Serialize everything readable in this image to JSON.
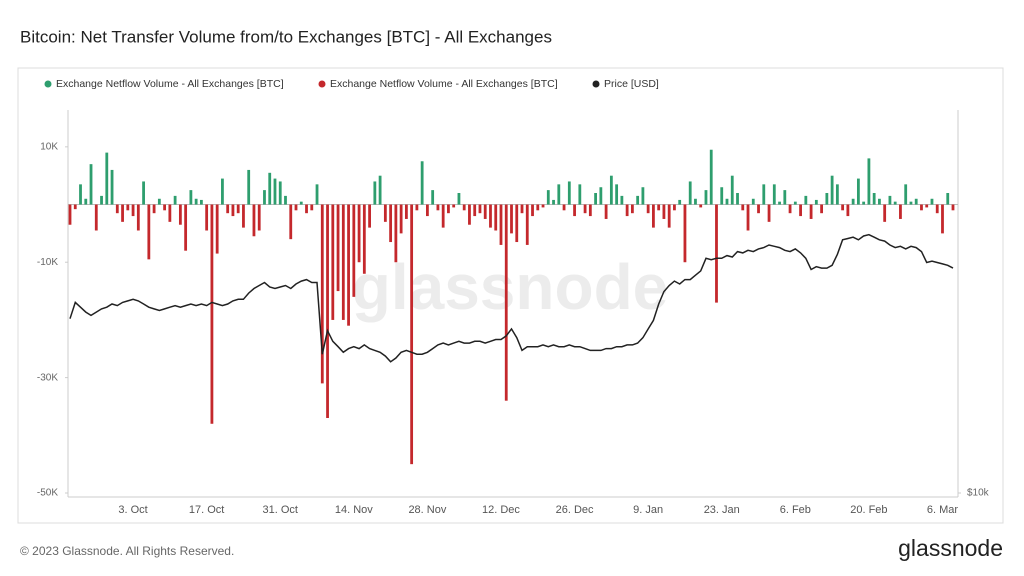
{
  "chart_data": {
    "type": "bar-line",
    "title": "Bitcoin: Net Transfer Volume from/to Exchanges [BTC] - All Exchanges",
    "watermark": "glassnode",
    "footer": "© 2023 Glassnode. All Rights Reserved.",
    "logo": "glassnode",
    "categories": [
      null,
      null,
      null,
      null,
      null,
      null,
      null,
      null,
      null,
      null,
      null,
      null,
      "3. Oct",
      null,
      null,
      null,
      null,
      null,
      null,
      null,
      null,
      null,
      null,
      null,
      null,
      null,
      "17. Oct",
      null,
      null,
      null,
      null,
      null,
      null,
      null,
      null,
      null,
      null,
      null,
      null,
      null,
      "31. Oct",
      null,
      null,
      null,
      null,
      null,
      null,
      null,
      null,
      null,
      null,
      null,
      null,
      null,
      "14. Nov",
      null,
      null,
      null,
      null,
      null,
      null,
      null,
      null,
      null,
      null,
      null,
      null,
      null,
      "28. Nov",
      null,
      null,
      null,
      null,
      null,
      null,
      null,
      null,
      null,
      null,
      null,
      null,
      null,
      "12. Dec",
      null,
      null,
      null,
      null,
      null,
      null,
      null,
      null,
      null,
      null,
      null,
      null,
      null,
      "26. Dec",
      null,
      null,
      null,
      null,
      null,
      null,
      null,
      null,
      null,
      null,
      null,
      null,
      null,
      "9. Jan",
      null,
      null,
      null,
      null,
      null,
      null,
      null,
      null,
      null,
      null,
      null,
      null,
      null,
      "23. Jan",
      null,
      null,
      null,
      null,
      null,
      null,
      null,
      null,
      null,
      null,
      null,
      null,
      null,
      "6. Feb",
      null,
      null,
      null,
      null,
      null,
      null,
      null,
      null,
      null,
      null,
      null,
      null,
      null,
      "20. Feb",
      null,
      null,
      null,
      null,
      null,
      null,
      null,
      null,
      null,
      null,
      null,
      null,
      null,
      "6. Mar",
      null,
      null
    ],
    "series": [
      {
        "name": "Exchange Netflow Volume - All Exchanges [BTC]",
        "color": "#2e9e6e",
        "values": [
          null,
          null,
          3500,
          1000,
          7000,
          null,
          1500,
          9000,
          6000,
          null,
          null,
          null,
          null,
          null,
          4000,
          null,
          null,
          1000,
          null,
          null,
          1500,
          null,
          null,
          2500,
          1000,
          800,
          null,
          null,
          null,
          4500,
          null,
          null,
          null,
          null,
          6000,
          null,
          null,
          2500,
          5500,
          4500,
          4000,
          1500,
          null,
          null,
          500,
          null,
          null,
          3500,
          null,
          null,
          null,
          null,
          null,
          null,
          null,
          null,
          null,
          null,
          4000,
          5000,
          null,
          null,
          null,
          null,
          null,
          null,
          null,
          7500,
          null,
          2500,
          null,
          null,
          null,
          null,
          2000,
          null,
          null,
          null,
          null,
          null,
          null,
          null,
          null,
          null,
          null,
          null,
          null,
          null,
          null,
          null,
          null,
          2500,
          800,
          3500,
          null,
          4000,
          null,
          3500,
          null,
          null,
          2000,
          3000,
          null,
          5000,
          3500,
          1500,
          null,
          null,
          1500,
          3000,
          null,
          null,
          null,
          null,
          null,
          null,
          800,
          null,
          4000,
          1000,
          null,
          2500,
          9500,
          null,
          3000,
          1000,
          5000,
          2000,
          null,
          null,
          1000,
          null,
          3500,
          null,
          3500,
          500,
          2500,
          null,
          500,
          null,
          1500,
          null,
          800,
          null,
          2000,
          5000,
          3500,
          null,
          null,
          1000,
          4500,
          500,
          8000,
          2000,
          1000,
          null,
          1500,
          500,
          null,
          3500,
          500,
          1000,
          null,
          null,
          1000,
          null,
          null,
          2000,
          null
        ]
      },
      {
        "name": "Exchange Netflow Volume - All Exchanges [BTC]",
        "color": "#c4282c",
        "values": [
          -3500,
          -800,
          null,
          null,
          null,
          -4500,
          null,
          null,
          null,
          -1500,
          -3000,
          -1000,
          -2000,
          -4500,
          null,
          -9500,
          -1500,
          null,
          -1000,
          -3000,
          null,
          -3500,
          -8000,
          null,
          null,
          null,
          -4500,
          -38000,
          -8500,
          null,
          -1500,
          -2000,
          -1500,
          -4000,
          null,
          -5500,
          -4500,
          null,
          null,
          null,
          null,
          null,
          -6000,
          -1000,
          null,
          -1500,
          -1000,
          null,
          -31000,
          -37000,
          -20000,
          -15000,
          -20000,
          -21000,
          -16000,
          -10000,
          -12000,
          -4000,
          null,
          null,
          -3000,
          -6500,
          -10000,
          -5000,
          -2500,
          -45000,
          -1000,
          null,
          -2000,
          null,
          -1000,
          -4000,
          -1500,
          -500,
          null,
          -1000,
          -3500,
          -2000,
          -1500,
          -2500,
          -4000,
          -4500,
          -7000,
          -34000,
          -5000,
          -6500,
          -1500,
          -7000,
          -2000,
          -1000,
          -500,
          null,
          null,
          null,
          -1000,
          null,
          -2000,
          null,
          -1500,
          -2000,
          null,
          null,
          -2500,
          null,
          null,
          null,
          -2000,
          -1500,
          null,
          null,
          -1500,
          -4000,
          -1000,
          -2500,
          -4000,
          -1000,
          null,
          -10000,
          null,
          null,
          -500,
          null,
          null,
          -17000,
          null,
          null,
          null,
          null,
          -1000,
          -4500,
          null,
          -1500,
          null,
          -3000,
          null,
          null,
          null,
          -1500,
          null,
          -2000,
          null,
          -2500,
          null,
          -1500,
          null,
          null,
          null,
          -1000,
          -2000,
          null,
          null,
          null,
          null,
          null,
          null,
          -3000,
          null,
          null,
          -2500,
          null,
          null,
          null,
          -1000,
          -500,
          null,
          -1500,
          -5000,
          null,
          -1000
        ]
      },
      {
        "name": "Price [USD]",
        "color": "#222222",
        "axis": "y2",
        "values": [
          17900,
          18900,
          18600,
          18300,
          18100,
          18300,
          18500,
          18600,
          18800,
          18700,
          18900,
          19000,
          19100,
          19000,
          18800,
          18600,
          18500,
          18400,
          18500,
          18600,
          18700,
          18600,
          18700,
          18800,
          18700,
          18800,
          18700,
          18900,
          18800,
          18700,
          18800,
          19000,
          19100,
          19100,
          19500,
          19800,
          20000,
          20200,
          19900,
          19800,
          19900,
          20000,
          19800,
          20100,
          20300,
          20400,
          20200,
          20200,
          15900,
          17200,
          16600,
          16300,
          16000,
          16200,
          16300,
          16200,
          16400,
          16200,
          16100,
          16000,
          15800,
          15500,
          15700,
          16000,
          16100,
          16000,
          15900,
          15900,
          16000,
          16200,
          16400,
          16500,
          16400,
          16500,
          16600,
          16500,
          16500,
          16600,
          16600,
          16500,
          16600,
          16700,
          16700,
          16900,
          17300,
          16800,
          16100,
          16300,
          16300,
          16300,
          16400,
          16300,
          16400,
          16300,
          16300,
          16400,
          16300,
          16300,
          16200,
          16100,
          16100,
          16100,
          16200,
          16200,
          16300,
          16300,
          16400,
          16400,
          16500,
          16800,
          17300,
          17800,
          18800,
          19600,
          20000,
          20300,
          20100,
          20400,
          20400,
          20700,
          21000,
          21900,
          21800,
          21900,
          21900,
          22100,
          22000,
          22400,
          22300,
          22500,
          22400,
          22600,
          22700,
          22900,
          22800,
          22700,
          22500,
          22400,
          22600,
          22300,
          21900,
          21100,
          21300,
          21200,
          21200,
          21400,
          22200,
          23300,
          23400,
          23500,
          23300,
          23600,
          23700,
          23500,
          23300,
          23200,
          22900,
          22700,
          22800,
          22600,
          22800,
          22700,
          22400,
          21600,
          21700,
          21600,
          21500,
          21400,
          21200
        ]
      }
    ],
    "ylim": [
      -50000,
      15000
    ],
    "yticks": [
      {
        "value": 10000,
        "label": "10K"
      },
      {
        "value": -10000,
        "label": "-10K"
      },
      {
        "value": -30000,
        "label": "-30K"
      },
      {
        "value": -50000,
        "label": "-50K"
      }
    ],
    "y2lim": [
      10000,
      35000
    ],
    "y2log": true,
    "y2ticks": [
      {
        "value": 10000,
        "label": "$10k"
      }
    ],
    "grid": false,
    "legend": "top"
  }
}
